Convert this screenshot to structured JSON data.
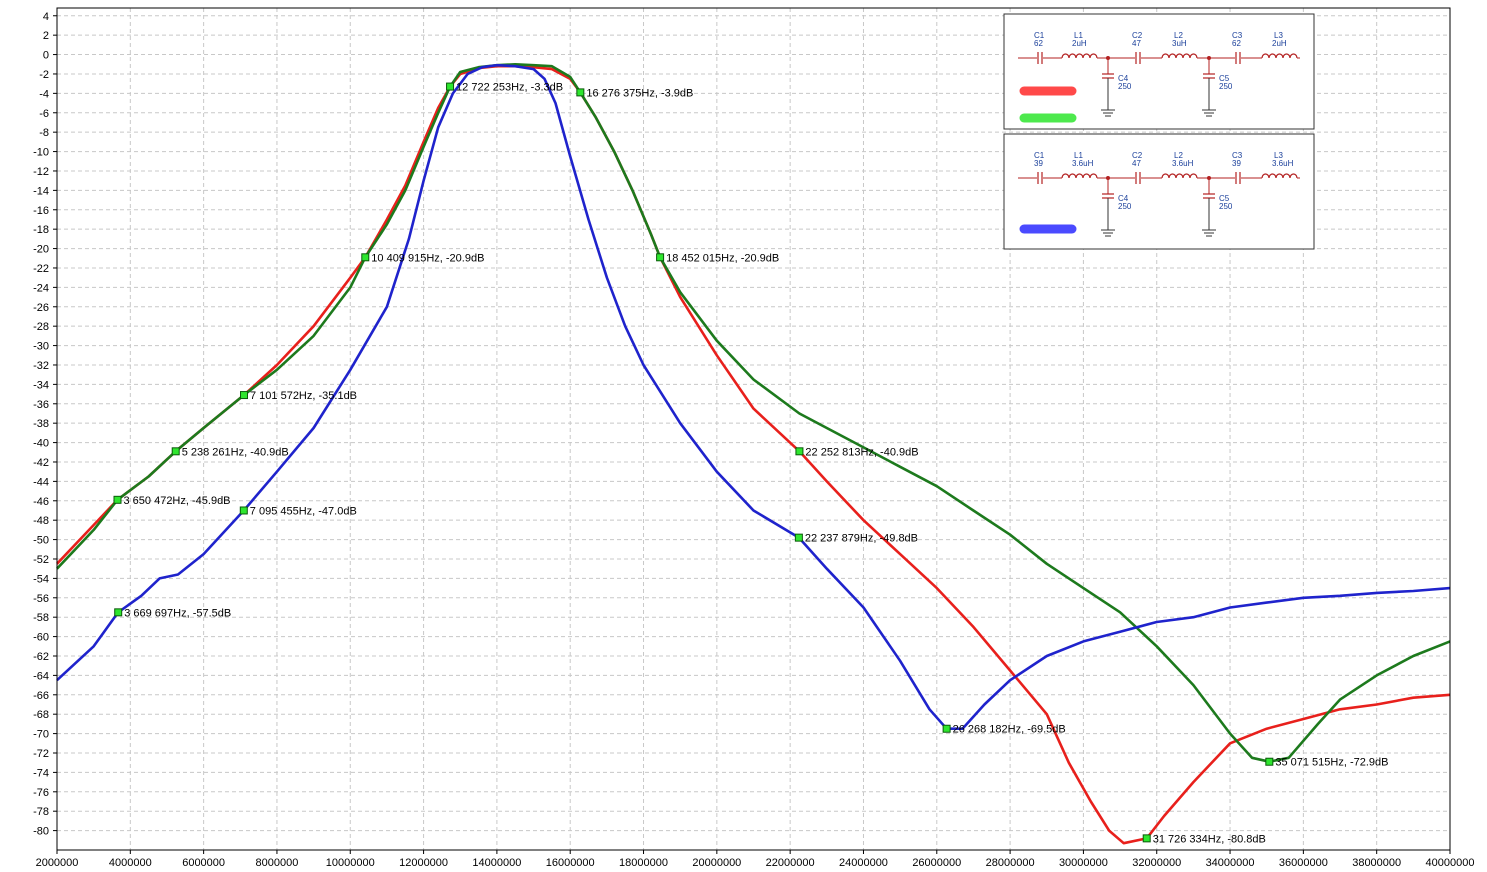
{
  "chart_data": {
    "type": "line",
    "xlim": [
      2000000,
      40000000
    ],
    "ylim": [
      -82,
      4.8
    ],
    "x_ticks": [
      2000000,
      4000000,
      6000000,
      8000000,
      10000000,
      12000000,
      14000000,
      16000000,
      18000000,
      20000000,
      22000000,
      24000000,
      26000000,
      28000000,
      30000000,
      32000000,
      34000000,
      36000000,
      38000000,
      40000000
    ],
    "y_ticks": [
      4,
      2,
      0,
      -2,
      -4,
      -6,
      -8,
      -10,
      -12,
      -14,
      -16,
      -18,
      -20,
      -22,
      -24,
      -26,
      -28,
      -30,
      -32,
      -34,
      -36,
      -38,
      -40,
      -42,
      -44,
      -46,
      -48,
      -50,
      -52,
      -54,
      -56,
      -58,
      -60,
      -62,
      -64,
      -66,
      -68,
      -70,
      -72,
      -74,
      -76,
      -78,
      -80
    ],
    "grid": true,
    "series": [
      {
        "color": "#e8201c",
        "points": [
          [
            2000000,
            -52.5
          ],
          [
            3000000,
            -48.5
          ],
          [
            3650472,
            -45.9
          ],
          [
            4500000,
            -43.5
          ],
          [
            5238261,
            -40.9
          ],
          [
            6000000,
            -38.5
          ],
          [
            7101572,
            -35.1
          ],
          [
            8000000,
            -32.0
          ],
          [
            9000000,
            -28.0
          ],
          [
            10000000,
            -23.0
          ],
          [
            10409915,
            -20.9
          ],
          [
            11000000,
            -17.0
          ],
          [
            11500000,
            -13.5
          ],
          [
            12000000,
            -9.0
          ],
          [
            12400000,
            -5.5
          ],
          [
            12722253,
            -3.3
          ],
          [
            13000000,
            -2.0
          ],
          [
            13500000,
            -1.4
          ],
          [
            14000000,
            -1.2
          ],
          [
            14500000,
            -1.2
          ],
          [
            15000000,
            -1.3
          ],
          [
            15500000,
            -1.5
          ],
          [
            16000000,
            -2.5
          ],
          [
            16276375,
            -3.9
          ],
          [
            16700000,
            -6.5
          ],
          [
            17200000,
            -10.0
          ],
          [
            17700000,
            -14.0
          ],
          [
            18200000,
            -18.5
          ],
          [
            18452015,
            -20.9
          ],
          [
            19000000,
            -25.0
          ],
          [
            20000000,
            -31.0
          ],
          [
            21000000,
            -36.5
          ],
          [
            22252813,
            -40.9
          ],
          [
            23000000,
            -44.0
          ],
          [
            24000000,
            -48.0
          ],
          [
            25000000,
            -51.5
          ],
          [
            26000000,
            -55.0
          ],
          [
            27000000,
            -59.0
          ],
          [
            28000000,
            -63.5
          ],
          [
            29000000,
            -68.0
          ],
          [
            29600000,
            -73.0
          ],
          [
            30200000,
            -77.0
          ],
          [
            30700000,
            -80.0
          ],
          [
            31100000,
            -81.3
          ],
          [
            31726334,
            -80.8
          ],
          [
            32200000,
            -78.5
          ],
          [
            33000000,
            -75.0
          ],
          [
            34000000,
            -71.0
          ],
          [
            35000000,
            -69.5
          ],
          [
            36000000,
            -68.5
          ],
          [
            37000000,
            -67.5
          ],
          [
            38000000,
            -67.0
          ],
          [
            39000000,
            -66.3
          ],
          [
            40000000,
            -66.0
          ]
        ]
      },
      {
        "color": "#1d7a1d",
        "points": [
          [
            2000000,
            -53.0
          ],
          [
            3000000,
            -49.0
          ],
          [
            3650472,
            -45.9
          ],
          [
            4500000,
            -43.5
          ],
          [
            5238261,
            -40.9
          ],
          [
            6000000,
            -38.5
          ],
          [
            7101572,
            -35.1
          ],
          [
            8000000,
            -32.5
          ],
          [
            9000000,
            -29.0
          ],
          [
            10000000,
            -24.0
          ],
          [
            10409915,
            -20.9
          ],
          [
            11000000,
            -17.5
          ],
          [
            11500000,
            -14.0
          ],
          [
            12000000,
            -9.5
          ],
          [
            12400000,
            -6.0
          ],
          [
            12722253,
            -3.3
          ],
          [
            13000000,
            -1.8
          ],
          [
            13500000,
            -1.3
          ],
          [
            14000000,
            -1.1
          ],
          [
            14500000,
            -1.0
          ],
          [
            15000000,
            -1.1
          ],
          [
            15500000,
            -1.2
          ],
          [
            16000000,
            -2.3
          ],
          [
            16276375,
            -3.9
          ],
          [
            16700000,
            -6.5
          ],
          [
            17200000,
            -10.0
          ],
          [
            17700000,
            -14.0
          ],
          [
            18200000,
            -18.5
          ],
          [
            18452015,
            -20.9
          ],
          [
            19000000,
            -24.5
          ],
          [
            20000000,
            -29.5
          ],
          [
            21000000,
            -33.5
          ],
          [
            22252813,
            -37.0
          ],
          [
            23000000,
            -38.5
          ],
          [
            24000000,
            -40.5
          ],
          [
            25000000,
            -42.5
          ],
          [
            26000000,
            -44.5
          ],
          [
            27000000,
            -47.0
          ],
          [
            28000000,
            -49.5
          ],
          [
            29000000,
            -52.5
          ],
          [
            30000000,
            -55.0
          ],
          [
            31000000,
            -57.5
          ],
          [
            32000000,
            -61.0
          ],
          [
            33000000,
            -65.0
          ],
          [
            34000000,
            -70.0
          ],
          [
            34600000,
            -72.5
          ],
          [
            35071515,
            -72.9
          ],
          [
            35600000,
            -72.5
          ],
          [
            36400000,
            -69.0
          ],
          [
            37000000,
            -66.5
          ],
          [
            38000000,
            -64.0
          ],
          [
            39000000,
            -62.0
          ],
          [
            40000000,
            -60.5
          ]
        ]
      },
      {
        "color": "#1f23cc",
        "points": [
          [
            2000000,
            -64.5
          ],
          [
            3000000,
            -61.0
          ],
          [
            3669697,
            -57.5
          ],
          [
            4300000,
            -55.8
          ],
          [
            4800000,
            -54.0
          ],
          [
            5300000,
            -53.6
          ],
          [
            6000000,
            -51.5
          ],
          [
            7095455,
            -47.0
          ],
          [
            8000000,
            -43.0
          ],
          [
            9000000,
            -38.5
          ],
          [
            10000000,
            -32.5
          ],
          [
            11000000,
            -26.0
          ],
          [
            11600000,
            -19.0
          ],
          [
            12000000,
            -13.0
          ],
          [
            12400000,
            -7.5
          ],
          [
            12800000,
            -4.0
          ],
          [
            13200000,
            -2.0
          ],
          [
            13600000,
            -1.3
          ],
          [
            14000000,
            -1.1
          ],
          [
            14500000,
            -1.2
          ],
          [
            15000000,
            -1.5
          ],
          [
            15300000,
            -2.5
          ],
          [
            15600000,
            -5.0
          ],
          [
            16000000,
            -10.5
          ],
          [
            16500000,
            -17.0
          ],
          [
            17000000,
            -23.0
          ],
          [
            17500000,
            -28.0
          ],
          [
            18000000,
            -32.0
          ],
          [
            19000000,
            -38.0
          ],
          [
            20000000,
            -43.0
          ],
          [
            21000000,
            -47.0
          ],
          [
            22237879,
            -49.8
          ],
          [
            23000000,
            -53.0
          ],
          [
            24000000,
            -57.0
          ],
          [
            25000000,
            -62.5
          ],
          [
            25800000,
            -67.5
          ],
          [
            26268182,
            -69.5
          ],
          [
            26700000,
            -69.5
          ],
          [
            27300000,
            -67.0
          ],
          [
            28000000,
            -64.5
          ],
          [
            29000000,
            -62.0
          ],
          [
            30000000,
            -60.5
          ],
          [
            31000000,
            -59.5
          ],
          [
            32000000,
            -58.5
          ],
          [
            33000000,
            -58.0
          ],
          [
            34000000,
            -57.0
          ],
          [
            35000000,
            -56.5
          ],
          [
            36000000,
            -56.0
          ],
          [
            37000000,
            -55.8
          ],
          [
            38000000,
            -55.5
          ],
          [
            39000000,
            -55.3
          ],
          [
            40000000,
            -55.0
          ]
        ]
      }
    ],
    "annotations": [
      {
        "x": 3650472,
        "y": -45.9,
        "text": "3 650 472Hz, -45.9dB"
      },
      {
        "x": 5238261,
        "y": -40.9,
        "text": "5 238 261Hz, -40.9dB"
      },
      {
        "x": 7101572,
        "y": -35.1,
        "text": "7 101 572Hz, -35.1dB"
      },
      {
        "x": 10409915,
        "y": -20.9,
        "text": "10 409 915Hz, -20.9dB"
      },
      {
        "x": 12722253,
        "y": -3.3,
        "text": "12 722 253Hz, -3.3dB"
      },
      {
        "x": 16276375,
        "y": -3.9,
        "text": "16 276 375Hz, -3.9dB"
      },
      {
        "x": 18452015,
        "y": -20.9,
        "text": "18 452 015Hz, -20.9dB"
      },
      {
        "x": 22252813,
        "y": -40.9,
        "text": "22 252 813Hz, -40.9dB"
      },
      {
        "x": 35071515,
        "y": -72.9,
        "text": "35 071 515Hz, -72.9dB"
      },
      {
        "x": 31726334,
        "y": -80.8,
        "text": "31 726 334Hz, -80.8dB"
      },
      {
        "x": 3669697,
        "y": -57.5,
        "text": "3 669 697Hz, -57.5dB"
      },
      {
        "x": 7095455,
        "y": -47.0,
        "text": "7 095 455Hz, -47.0dB"
      },
      {
        "x": 22237879,
        "y": -49.8,
        "text": "22 237 879Hz, -49.8dB"
      },
      {
        "x": 26268182,
        "y": -69.5,
        "text": "26 268 182Hz, -69.5dB"
      }
    ]
  },
  "schematics": [
    {
      "legend_colors": [
        "#ff2a2a",
        "#2ee62e"
      ],
      "caps_top": [
        {
          "name": "C1",
          "value": "62"
        },
        {
          "name": "C2",
          "value": "47"
        },
        {
          "name": "C3",
          "value": "62"
        }
      ],
      "inductors": [
        {
          "name": "L1",
          "value": "2uH"
        },
        {
          "name": "L2",
          "value": "3uH"
        },
        {
          "name": "L3",
          "value": "2uH"
        }
      ],
      "caps_shunt": [
        {
          "name": "C4",
          "value": "250"
        },
        {
          "name": "C5",
          "value": "250"
        }
      ]
    },
    {
      "legend_colors": [
        "#2b2bff"
      ],
      "caps_top": [
        {
          "name": "C1",
          "value": "39"
        },
        {
          "name": "C2",
          "value": "47"
        },
        {
          "name": "C3",
          "value": "39"
        }
      ],
      "inductors": [
        {
          "name": "L1",
          "value": "3.6uH"
        },
        {
          "name": "L2",
          "value": "3.6uH"
        },
        {
          "name": "L3",
          "value": "3.6uH"
        }
      ],
      "caps_shunt": [
        {
          "name": "C4",
          "value": "250"
        },
        {
          "name": "C5",
          "value": "250"
        }
      ]
    }
  ]
}
